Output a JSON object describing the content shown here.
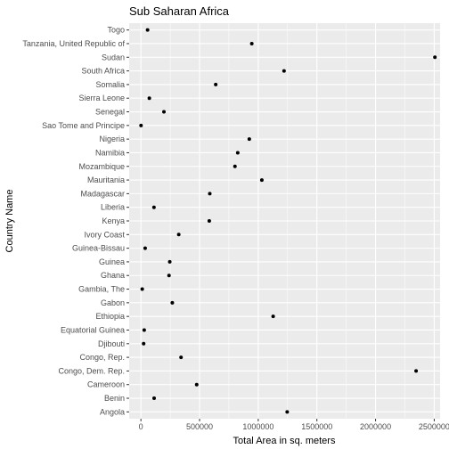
{
  "chart_data": {
    "type": "scatter",
    "title": "Sub Saharan Africa",
    "xlabel": "Total Area in sq. meters",
    "ylabel": "Country Name",
    "xlim": [
      -100000,
      2550000
    ],
    "xticks": [
      0,
      500000,
      1000000,
      1500000,
      2000000,
      2500000
    ],
    "xtick_labels": [
      "0",
      "500000",
      "1000000",
      "1500000",
      "2000000",
      "2500000"
    ],
    "grid": true,
    "legend": "none",
    "colors": {
      "panel": "#ebebeb",
      "grid": "#ffffff",
      "point": "#000000"
    },
    "points": [
      {
        "country": "Angola",
        "value": 1246700
      },
      {
        "country": "Benin",
        "value": 112620
      },
      {
        "country": "Cameroon",
        "value": 475440
      },
      {
        "country": "Congo, Dem. Rep.",
        "value": 2345410
      },
      {
        "country": "Congo, Rep.",
        "value": 342000
      },
      {
        "country": "Djibouti",
        "value": 23200
      },
      {
        "country": "Equatorial Guinea",
        "value": 28050
      },
      {
        "country": "Ethiopia",
        "value": 1127127
      },
      {
        "country": "Gabon",
        "value": 267667
      },
      {
        "country": "Gambia, The",
        "value": 11300
      },
      {
        "country": "Ghana",
        "value": 239460
      },
      {
        "country": "Guinea",
        "value": 245857
      },
      {
        "country": "Guinea-Bissau",
        "value": 36120
      },
      {
        "country": "Ivory Coast",
        "value": 322460
      },
      {
        "country": "Kenya",
        "value": 582650
      },
      {
        "country": "Liberia",
        "value": 111370
      },
      {
        "country": "Madagascar",
        "value": 587040
      },
      {
        "country": "Mauritania",
        "value": 1030700
      },
      {
        "country": "Mozambique",
        "value": 801590
      },
      {
        "country": "Namibia",
        "value": 825418
      },
      {
        "country": "Nigeria",
        "value": 923768
      },
      {
        "country": "Sao Tome and Principe",
        "value": 1001
      },
      {
        "country": "Senegal",
        "value": 196190
      },
      {
        "country": "Sierra Leone",
        "value": 71740
      },
      {
        "country": "Somalia",
        "value": 637657
      },
      {
        "country": "South Africa",
        "value": 1219912
      },
      {
        "country": "Sudan",
        "value": 2505810
      },
      {
        "country": "Tanzania, United Republic of",
        "value": 945087
      },
      {
        "country": "Togo",
        "value": 56785
      }
    ]
  }
}
